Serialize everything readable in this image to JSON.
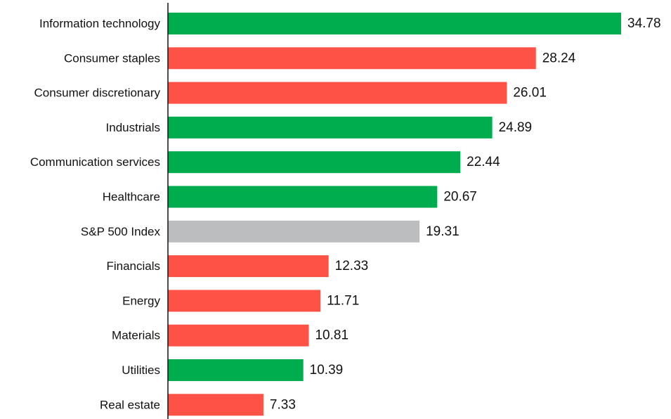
{
  "chart_data": {
    "type": "bar",
    "orientation": "horizontal",
    "title": "",
    "xlabel": "",
    "ylabel": "",
    "grid": false,
    "legend": "none",
    "categories": [
      "Information technology",
      "Consumer staples",
      "Consumer discretionary",
      "Industrials",
      "Communication services",
      "Healthcare",
      "S&P 500 Index",
      "Financials",
      "Energy",
      "Materials",
      "Utilities",
      "Real estate"
    ],
    "values": [
      34.78,
      28.24,
      26.01,
      24.89,
      22.44,
      20.67,
      19.31,
      12.33,
      11.71,
      10.81,
      10.39,
      7.33
    ],
    "value_labels": [
      "34.78",
      "28.24",
      "26.01",
      "24.89",
      "22.44",
      "20.67",
      "19.31",
      "12.33",
      "11.71",
      "10.81",
      "10.39",
      "7.33"
    ],
    "bar_colors": [
      "#00ad4e",
      "#ff5247",
      "#ff5247",
      "#00ad4e",
      "#00ad4e",
      "#00ad4e",
      "#bbbdbf",
      "#ff5247",
      "#ff5247",
      "#ff5247",
      "#00ad4e",
      "#ff5247"
    ],
    "xlim": [
      0,
      34.78
    ]
  }
}
